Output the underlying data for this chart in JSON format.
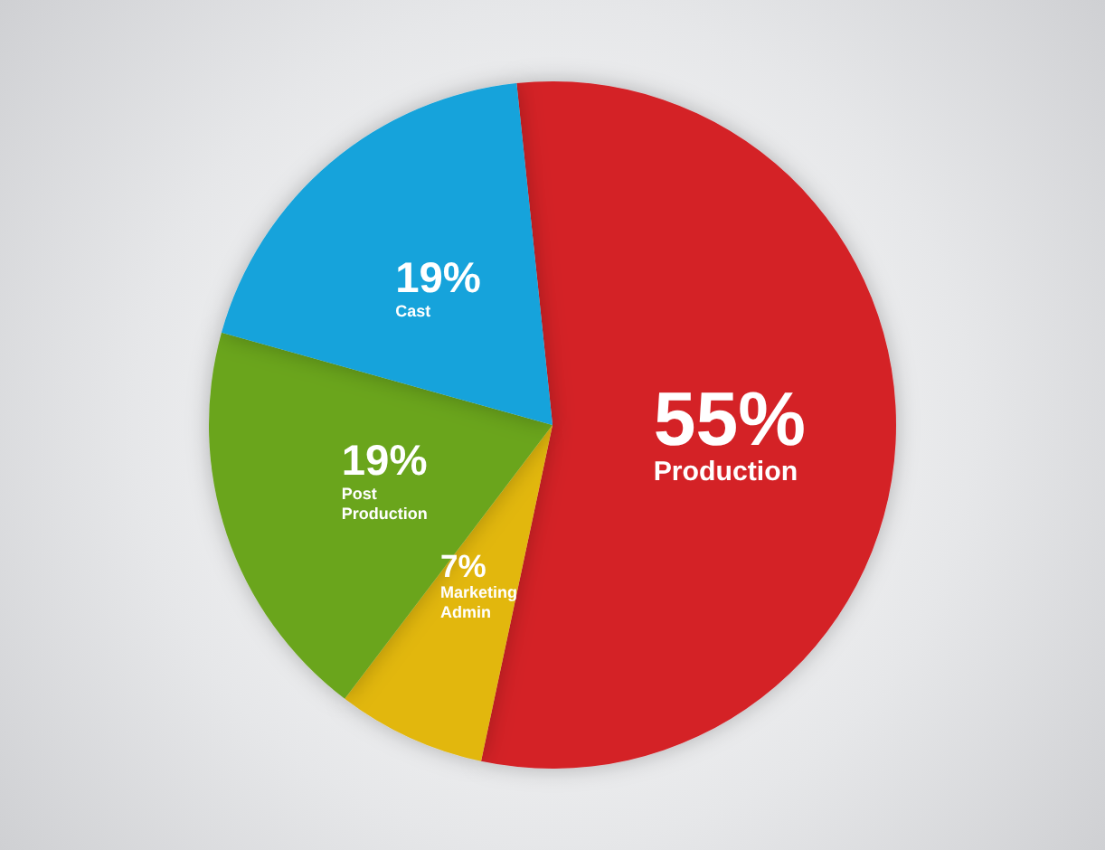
{
  "chart_data": {
    "type": "pie",
    "categories": [
      "Production",
      "Marketing\nAdmin",
      "Post\nProduction",
      "Cast"
    ],
    "values": [
      55,
      7,
      19,
      19
    ],
    "colors": [
      "#d42127",
      "#e2b70b",
      "#6aa51c",
      "#12a3db"
    ],
    "value_labels": [
      "55%",
      "7%",
      "19%",
      "19%"
    ],
    "legend": false
  }
}
